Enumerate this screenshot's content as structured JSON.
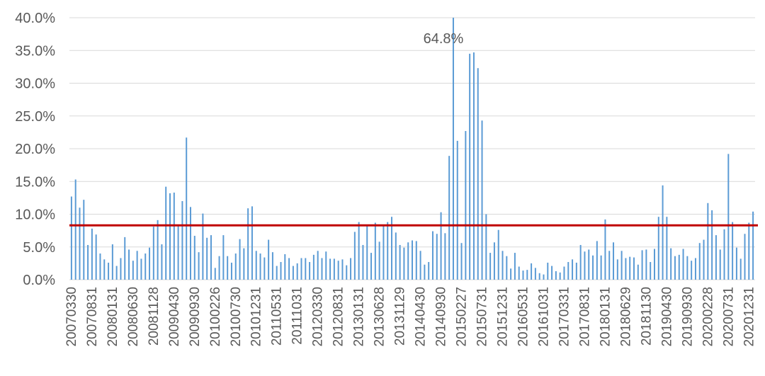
{
  "chart_data": {
    "type": "bar",
    "categories": [
      "20070330",
      null,
      null,
      null,
      null,
      "20070831",
      null,
      null,
      null,
      null,
      "20080131",
      null,
      null,
      null,
      null,
      "20080630",
      null,
      null,
      null,
      null,
      "20081128",
      null,
      null,
      null,
      null,
      "20090430",
      null,
      null,
      null,
      null,
      "20090930",
      null,
      null,
      null,
      null,
      "20100226",
      null,
      null,
      null,
      null,
      "20100730",
      null,
      null,
      null,
      null,
      "20101231",
      null,
      null,
      null,
      null,
      "20110531",
      null,
      null,
      null,
      null,
      "20111031",
      null,
      null,
      null,
      null,
      "20120330",
      null,
      null,
      null,
      null,
      "20120831",
      null,
      null,
      null,
      null,
      "20130131",
      null,
      null,
      null,
      null,
      "20130628",
      null,
      null,
      null,
      null,
      "20131129",
      null,
      null,
      null,
      null,
      "20140430",
      null,
      null,
      null,
      null,
      "20140930",
      null,
      null,
      null,
      null,
      "20150227",
      null,
      null,
      null,
      null,
      "20150731",
      null,
      null,
      null,
      null,
      "20151231",
      null,
      null,
      null,
      null,
      "20160531",
      null,
      null,
      null,
      null,
      "20161031",
      null,
      null,
      null,
      null,
      "20170331",
      null,
      null,
      null,
      null,
      "20170831",
      null,
      null,
      null,
      null,
      "20180131",
      null,
      null,
      null,
      null,
      "20180629",
      null,
      null,
      null,
      null,
      "20181130",
      null,
      null,
      null,
      null,
      "20190430",
      null,
      null,
      null,
      null,
      "20190930",
      null,
      null,
      null,
      null,
      "20200228",
      null,
      null,
      null,
      null,
      "20200731",
      null,
      null,
      null,
      null,
      "20201231",
      null
    ],
    "values": [
      12.7,
      15.3,
      11.0,
      12.2,
      5.3,
      7.8,
      6.9,
      4.0,
      3.1,
      2.6,
      5.4,
      2.1,
      3.3,
      6.5,
      4.6,
      2.9,
      4.4,
      3.2,
      4.0,
      4.9,
      8.1,
      9.1,
      5.4,
      14.2,
      13.2,
      13.3,
      8.4,
      12.0,
      21.7,
      11.1,
      6.7,
      4.2,
      10.1,
      6.4,
      6.8,
      1.8,
      3.6,
      6.8,
      3.6,
      2.6,
      4.0,
      6.2,
      4.8,
      10.9,
      11.2,
      4.4,
      4.0,
      3.4,
      6.1,
      4.2,
      2.1,
      2.7,
      3.9,
      3.3,
      2.1,
      2.5,
      3.3,
      3.3,
      2.7,
      3.8,
      4.4,
      3.3,
      4.3,
      3.2,
      3.2,
      2.9,
      3.1,
      2.2,
      3.3,
      7.3,
      8.8,
      5.3,
      8.2,
      4.1,
      8.7,
      5.8,
      8.2,
      8.8,
      9.6,
      7.2,
      5.3,
      4.9,
      5.7,
      6.0,
      5.9,
      4.4,
      2.3,
      2.7,
      7.4,
      7.0,
      10.3,
      7.1,
      18.9,
      64.8,
      21.2,
      5.6,
      22.7,
      34.5,
      34.7,
      32.3,
      24.3,
      10.0,
      4.1,
      5.7,
      7.6,
      4.4,
      3.6,
      1.7,
      4.1,
      2.0,
      1.4,
      1.5,
      2.5,
      1.8,
      1.0,
      0.8,
      2.6,
      2.1,
      1.3,
      1.1,
      2.0,
      2.7,
      3.1,
      2.6,
      5.3,
      4.3,
      4.6,
      3.7,
      5.9,
      3.7,
      9.2,
      4.4,
      5.7,
      3.1,
      4.4,
      3.3,
      3.5,
      3.4,
      2.3,
      4.5,
      4.6,
      2.7,
      4.7,
      9.6,
      14.4,
      9.6,
      4.8,
      3.6,
      3.8,
      4.7,
      3.6,
      2.9,
      3.3,
      5.6,
      6.1,
      11.7,
      10.6,
      6.8,
      4.6,
      7.7,
      19.2,
      8.8,
      4.9,
      3.2,
      7.0,
      8.7,
      10.4
    ],
    "value_labels": [
      null,
      null,
      null,
      null,
      null,
      null,
      null,
      null,
      null,
      null,
      null,
      null,
      null,
      null,
      null,
      null,
      null,
      null,
      null,
      null,
      null,
      null,
      null,
      null,
      null,
      null,
      null,
      null,
      null,
      null,
      null,
      null,
      null,
      null,
      null,
      null,
      null,
      null,
      null,
      null,
      null,
      null,
      null,
      null,
      null,
      null,
      null,
      null,
      null,
      null,
      null,
      null,
      null,
      null,
      null,
      null,
      null,
      null,
      null,
      null,
      null,
      null,
      null,
      null,
      null,
      null,
      null,
      null,
      null,
      null,
      null,
      null,
      null,
      null,
      null,
      null,
      null,
      null,
      null,
      null,
      null,
      null,
      null,
      null,
      null,
      null,
      null,
      null,
      null,
      null,
      null,
      null,
      null,
      "64.8%",
      null,
      null,
      null,
      null,
      null,
      null,
      null,
      null,
      null,
      null,
      null,
      null,
      null,
      null,
      null,
      null,
      null,
      null,
      null,
      null,
      null,
      null,
      null,
      null,
      null,
      null,
      null,
      null,
      null,
      null,
      null,
      null,
      null,
      null,
      null,
      null,
      null,
      null,
      null,
      null,
      null,
      null,
      null,
      null,
      null,
      null,
      null,
      null,
      null,
      null,
      null,
      null,
      null,
      null,
      null,
      null,
      null,
      null,
      null,
      null,
      null,
      null,
      null,
      null,
      null,
      null,
      null,
      null,
      null,
      null,
      null,
      null,
      null
    ],
    "color": "#5b9bd5",
    "reference_line": {
      "value": 8.3,
      "color": "#c00000"
    },
    "ylim": [
      0,
      40
    ],
    "yticks": [
      {
        "value": 0,
        "label": "0.0%"
      },
      {
        "value": 5,
        "label": "5.0%"
      },
      {
        "value": 10,
        "label": "10.0%"
      },
      {
        "value": 15,
        "label": "15.0%"
      },
      {
        "value": 20,
        "label": "20.0%"
      },
      {
        "value": 25,
        "label": "25.0%"
      },
      {
        "value": 30,
        "label": "30.0%"
      },
      {
        "value": 35,
        "label": "35.0%"
      },
      {
        "value": 40,
        "label": "40.0%"
      }
    ],
    "grid": true
  }
}
